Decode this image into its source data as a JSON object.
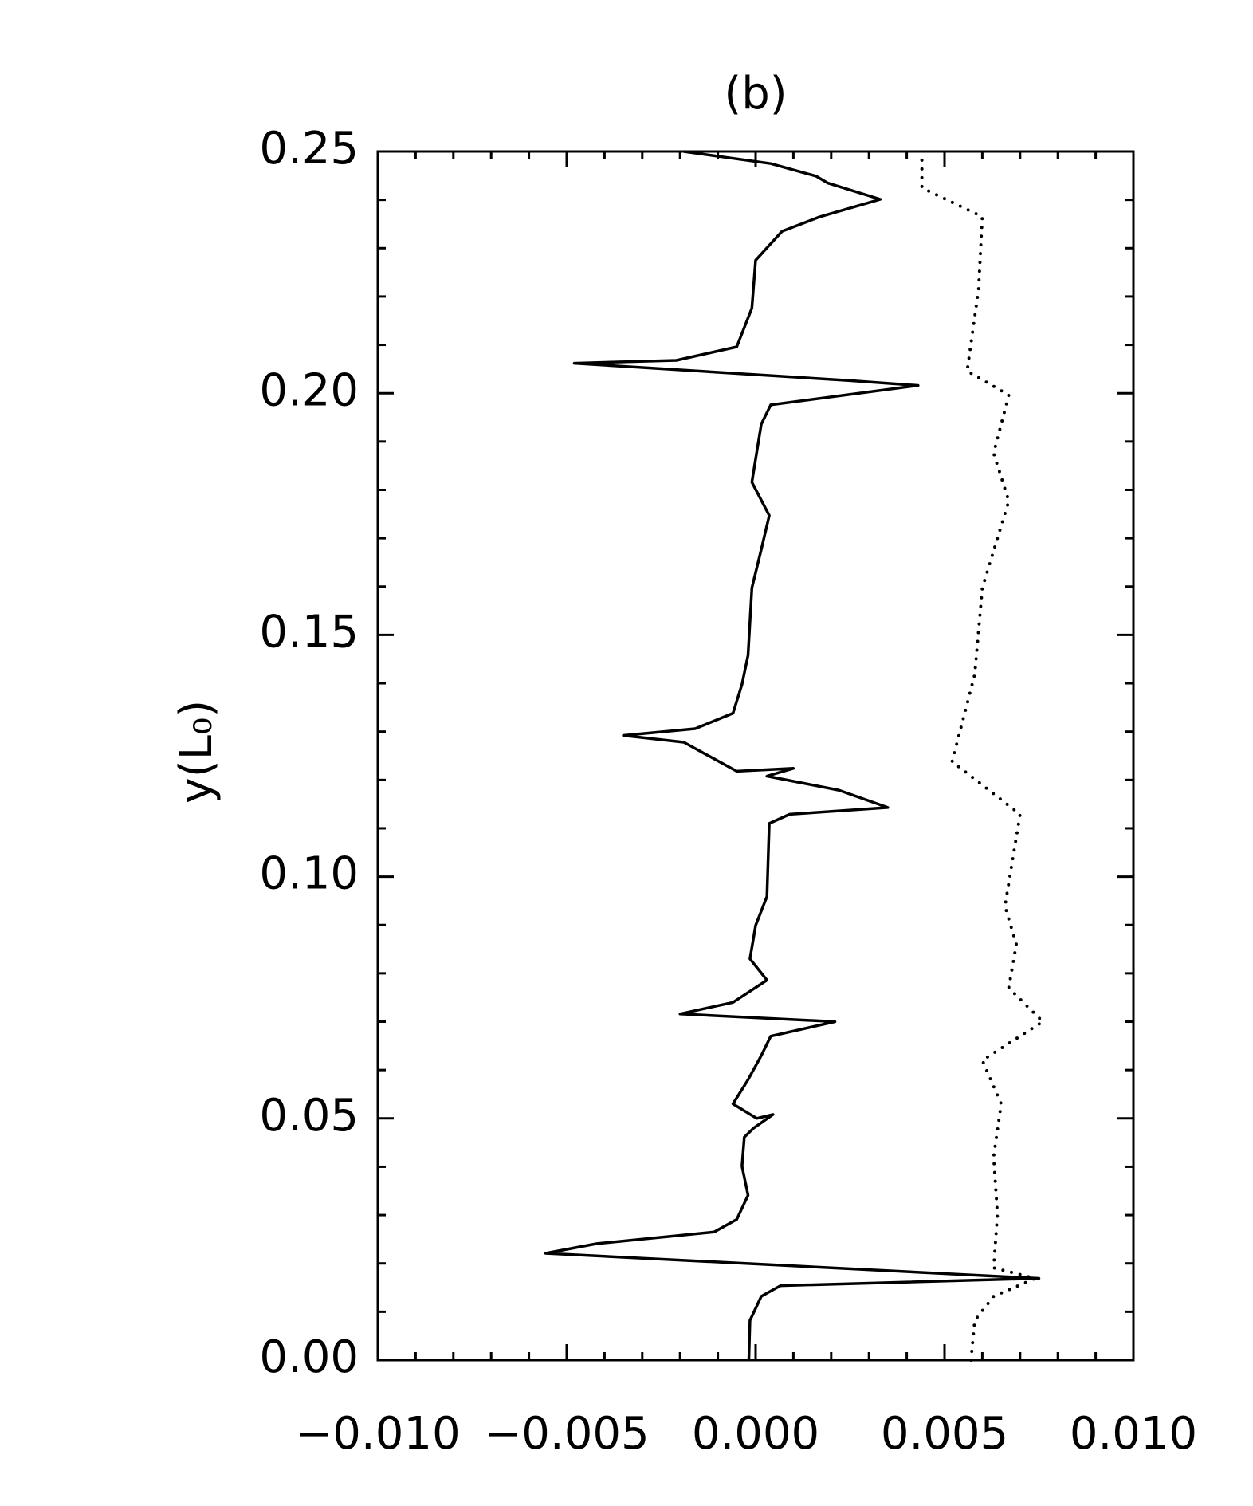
{
  "chart_data": {
    "type": "line",
    "title": "(b)",
    "y_label": "y(L₀)",
    "xlim": [
      -0.01,
      0.01
    ],
    "xticks": [
      {
        "value": -0.01,
        "label": "−0.010"
      },
      {
        "value": -0.005,
        "label": "−0.005"
      },
      {
        "value": 0,
        "label": "0.000"
      },
      {
        "value": 0.005,
        "label": "0.005"
      },
      {
        "value": 0.01,
        "label": "0.010"
      }
    ],
    "ylim": [
      0,
      0.25
    ],
    "yticks": [
      {
        "value": 0,
        "label": "0.00"
      },
      {
        "value": 0.05,
        "label": "0.05"
      },
      {
        "value": 0.1,
        "label": "0.10"
      },
      {
        "value": 0.15,
        "label": "0.15"
      },
      {
        "value": 0.2,
        "label": "0.20"
      },
      {
        "value": 0.25,
        "label": "0.25"
      }
    ],
    "series": [
      {
        "color": "#000000",
        "linestyle": "solid",
        "x": [
          -0.00018,
          -0.00015,
          0.00015,
          0.00066,
          0.0075,
          -0.00556,
          -0.0042,
          -0.0011,
          -0.0005,
          -0.0002,
          -0.00036,
          -0.0003,
          -5e-05,
          0.00046,
          3e-05,
          -0.0006,
          -0.0002,
          0.00015,
          0.0004,
          0.0021,
          -0.002,
          -0.0006,
          0.0003,
          -0.00015,
          0.0,
          0.0003,
          0.00036,
          0.0009,
          0.0035,
          0.0022,
          0.0003,
          0.001,
          -0.0005,
          -0.0019,
          -0.0035,
          -0.0016,
          -0.0006,
          -0.00036,
          -0.0002,
          -0.0001,
          0.00015,
          0.00036,
          -0.0001,
          0.00015,
          0.0004,
          0.0043,
          0.0025,
          -0.0048,
          -0.0021,
          -0.0005,
          -0.0001,
          0.0,
          0.0007,
          0.0017,
          0.0033,
          0.0019,
          0.0016,
          0.0004,
          -0.0019
        ],
        "y": [
          0.0,
          0.0082,
          0.0132,
          0.0154,
          0.0169,
          0.0221,
          0.0241,
          0.0265,
          0.0291,
          0.0341,
          0.0401,
          0.0461,
          0.048,
          0.0508,
          0.05,
          0.053,
          0.058,
          0.063,
          0.067,
          0.07,
          0.0716,
          0.074,
          0.0786,
          0.083,
          0.0899,
          0.0959,
          0.111,
          0.1129,
          0.1143,
          0.1179,
          0.1208,
          0.1224,
          0.1218,
          0.1278,
          0.1292,
          0.1306,
          0.1338,
          0.1398,
          0.1458,
          0.1597,
          0.1677,
          0.1747,
          0.1816,
          0.1936,
          0.1976,
          0.2016,
          0.2026,
          0.2062,
          0.2068,
          0.2096,
          0.2176,
          0.2275,
          0.2335,
          0.2365,
          0.2401,
          0.2435,
          0.2449,
          0.2475,
          0.25
        ]
      },
      {
        "color": "#000000",
        "linestyle": "dotted",
        "x": [
          0.0057,
          0.0058,
          0.0063,
          0.0074,
          0.0063,
          0.0064,
          0.0063,
          0.0065,
          0.006,
          0.0076,
          0.0067,
          0.0069,
          0.0066,
          0.007,
          0.0052,
          0.0058,
          0.006,
          0.0067,
          0.0063,
          0.0067,
          0.0056,
          0.0059,
          0.006,
          0.0044,
          0.0044
        ],
        "y": [
          0.0,
          0.0082,
          0.0132,
          0.0169,
          0.0191,
          0.0301,
          0.0421,
          0.053,
          0.062,
          0.07,
          0.077,
          0.086,
          0.0939,
          0.1129,
          0.1238,
          0.1418,
          0.1597,
          0.1777,
          0.1876,
          0.1996,
          0.2046,
          0.2215,
          0.2365,
          0.2425,
          0.2489
        ]
      }
    ]
  }
}
